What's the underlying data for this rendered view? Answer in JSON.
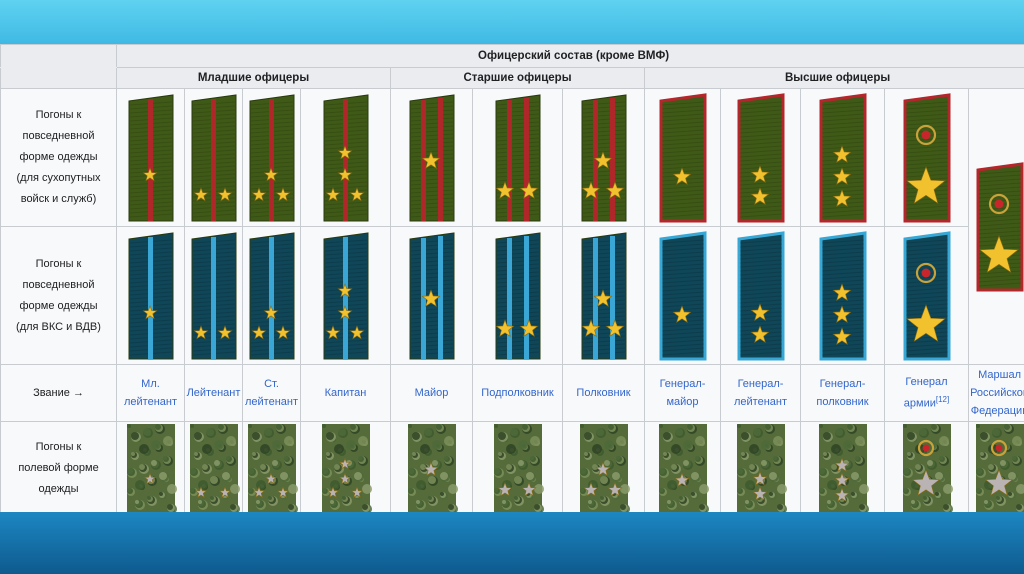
{
  "table": {
    "title": "Офицерский состав (кроме ВМФ)",
    "groups": [
      {
        "label": "Младшие офицеры",
        "span": 4
      },
      {
        "label": "Старшие офицеры",
        "span": 3
      },
      {
        "label": "Высшие офицеры",
        "span": 5
      }
    ],
    "row_labels": {
      "ground": "Погоны к повседневной форме одежды (для сухопутных войск и служб)",
      "air": "Погоны к повседневной форме одежды (для ВКС и ВДВ)",
      "rank": "Звание →",
      "field": "Погоны к полевой форме одежды"
    },
    "ranks": [
      {
        "name": "Мл. лейтенант",
        "kind": "junior",
        "stars": 1
      },
      {
        "name": "Лейтенант",
        "kind": "junior",
        "stars": 2
      },
      {
        "name": "Ст. лейтенант",
        "kind": "junior",
        "stars": 3
      },
      {
        "name": "Капитан",
        "kind": "junior",
        "stars": 4
      },
      {
        "name": "Майор",
        "kind": "senior",
        "stars": 1
      },
      {
        "name": "Подполковник",
        "kind": "senior",
        "stars": 2
      },
      {
        "name": "Полковник",
        "kind": "senior",
        "stars": 3
      },
      {
        "name": "Генерал-майор",
        "kind": "general",
        "stars": 1
      },
      {
        "name": "Генерал-лейтенант",
        "kind": "general",
        "stars": 2
      },
      {
        "name": "Генерал-полковник",
        "kind": "general",
        "stars": 3
      },
      {
        "name": "Генерал армии",
        "footnote": "[12]",
        "kind": "army",
        "stars": 1
      },
      {
        "name": "Маршал Российской Федерации",
        "kind": "marshal",
        "stars": 1
      }
    ],
    "colors": {
      "ground_strap": "#3f5a16",
      "ground_stripe": "#b0272a",
      "air_strap": "#0f4658",
      "air_stripe": "#3aa6d6",
      "general_piping_ground": "#b3262b",
      "general_piping_air": "#37a8d6",
      "star_gold": "#f2c12e",
      "field_star": "#b9b3b3",
      "link": "#3366cc"
    }
  }
}
